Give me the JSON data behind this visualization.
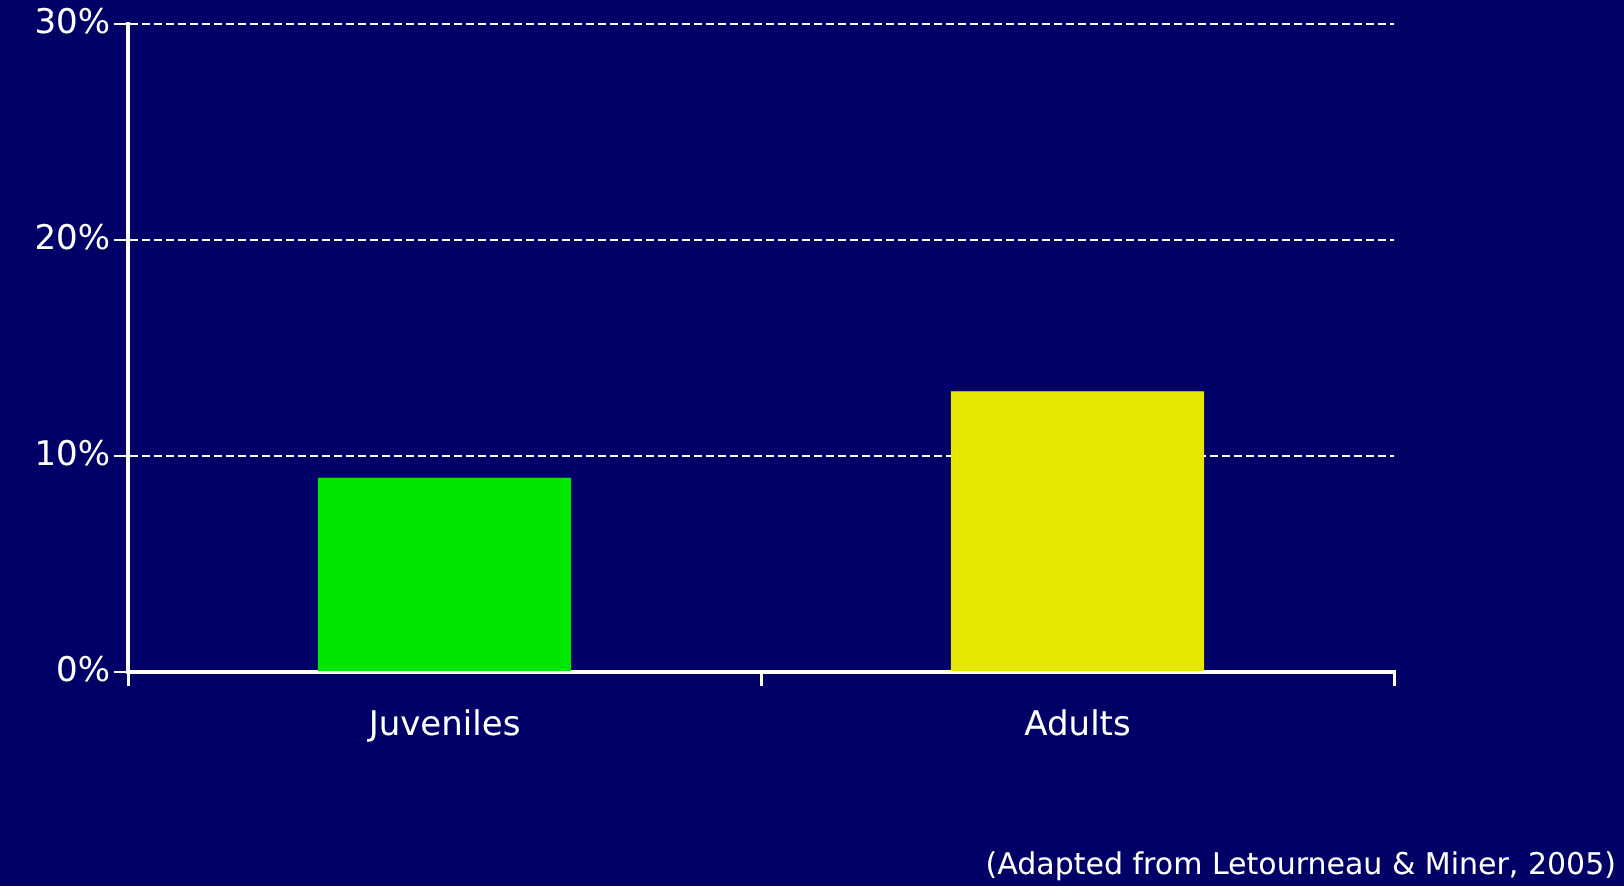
{
  "chart_data": {
    "type": "bar",
    "categories": [
      "Juveniles",
      "Adults"
    ],
    "values": [
      9,
      13
    ],
    "colors": [
      "#00e600",
      "#e6e600"
    ],
    "ylim": [
      0,
      30
    ],
    "yticks": [
      {
        "value": 0,
        "label": "0%"
      },
      {
        "value": 10,
        "label": "10%"
      },
      {
        "value": 20,
        "label": "20%"
      },
      {
        "value": 30,
        "label": "30%"
      }
    ],
    "grid": "y",
    "legend": false,
    "annotations": [
      "(Adapted from Letourneau & Miner, 2005)"
    ]
  }
}
